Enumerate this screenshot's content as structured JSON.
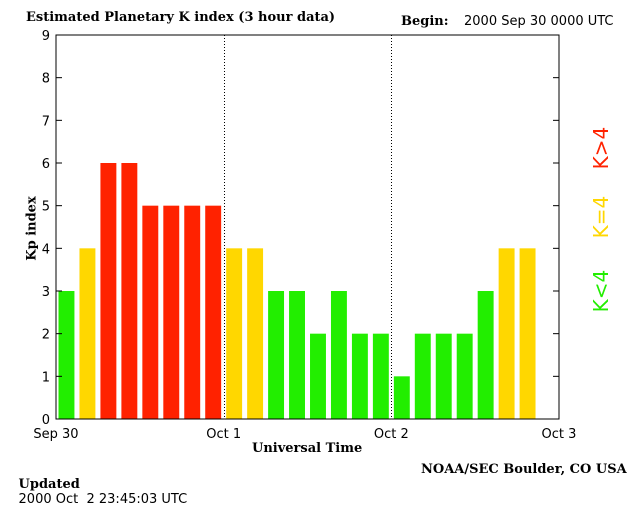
{
  "header": {
    "title": "Estimated Planetary K index (3 hour data)",
    "begin_label": "Begin:",
    "begin_value": "2000 Sep 30 0000 UTC"
  },
  "footer": {
    "updated_label": "Updated",
    "updated_value": "2000 Oct  2 23:45:03 UTC",
    "source": "NOAA/SEC Boulder, CO USA"
  },
  "legend": {
    "high": "K>4",
    "mid": "K=4",
    "low": "K<4"
  },
  "colors": {
    "high": "#ff2200",
    "mid": "#ffd700",
    "low": "#22ee00",
    "axis": "#000000"
  },
  "chart_data": {
    "type": "bar",
    "title": "Estimated Planetary K index (3 hour data)",
    "xlabel": "Universal Time",
    "ylabel": "Kp index",
    "ylim": [
      0,
      9
    ],
    "yticks": [
      0,
      1,
      2,
      3,
      4,
      5,
      6,
      7,
      8,
      9
    ],
    "xlim": [
      0,
      72
    ],
    "xticks": [
      {
        "hour": 0,
        "label": "Sep 30"
      },
      {
        "hour": 24,
        "label": "Oct 1"
      },
      {
        "hour": 48,
        "label": "Oct 2"
      },
      {
        "hour": 72,
        "label": "Oct 3"
      }
    ],
    "day_dividers": [
      24,
      48
    ],
    "interval_hours": 3,
    "values": [
      3,
      4,
      6,
      6,
      5,
      5,
      5,
      5,
      4,
      4,
      3,
      3,
      2,
      3,
      2,
      2,
      1,
      2,
      2,
      2,
      3,
      4,
      4
    ],
    "grid": false
  }
}
